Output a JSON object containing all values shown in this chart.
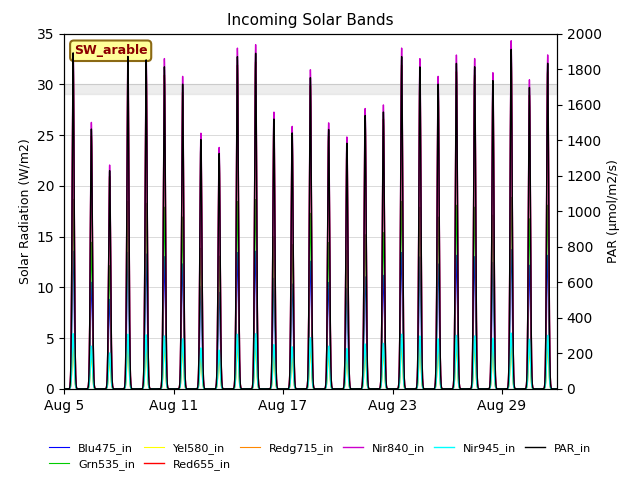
{
  "title": "Incoming Solar Bands",
  "ylabel_left": "Solar Radiation (W/m2)",
  "ylabel_right": "PAR (μmol/m2/s)",
  "annotation_text": "SW_arable",
  "annotation_color": "#8B0000",
  "annotation_bg": "#FFFF99",
  "annotation_border": "#8B6914",
  "xlim_days": [
    0,
    27
  ],
  "ylim_left": [
    0,
    35
  ],
  "ylim_right": [
    0,
    2000
  ],
  "xtick_positions": [
    0,
    6,
    12,
    18,
    24
  ],
  "xtick_labels": [
    "Aug 5",
    "Aug 11",
    "Aug 17",
    "Aug 23",
    "Aug 29"
  ],
  "yticks_left": [
    0,
    5,
    10,
    15,
    20,
    25,
    30,
    35
  ],
  "yticks_right": [
    0,
    200,
    400,
    600,
    800,
    1000,
    1200,
    1400,
    1600,
    1800,
    2000
  ],
  "hspan_ymin": 29.0,
  "hspan_ymax": 30.0,
  "lines": {
    "Blu475_in": {
      "color": "#0000FF",
      "lw": 0.8,
      "peak": 0.4
    },
    "Grn535_in": {
      "color": "#00CC00",
      "lw": 0.8,
      "peak": 0.55
    },
    "Yel580_in": {
      "color": "#FFFF00",
      "lw": 0.8,
      "peak": 0.12
    },
    "Red655_in": {
      "color": "#FF0000",
      "lw": 1.0,
      "peak": 0.95
    },
    "Redg715_in": {
      "color": "#FF8800",
      "lw": 0.8,
      "peak": 0.15
    },
    "Nir840_in": {
      "color": "#CC00CC",
      "lw": 1.0,
      "peak": 1.0
    },
    "Nir945_in": {
      "color": "#00FFFF",
      "lw": 1.0,
      "peak": 0.16
    },
    "PAR_in": {
      "color": "#000000",
      "lw": 1.0,
      "peak": 0.0
    }
  },
  "PAR_peak_umol": 1950,
  "max_solar_wm2": 35.0,
  "legend_order": [
    "Blu475_in",
    "Grn535_in",
    "Yel580_in",
    "Red655_in",
    "Redg715_in",
    "Nir840_in",
    "Nir945_in",
    "PAR_in"
  ],
  "figsize": [
    6.4,
    4.8
  ],
  "dpi": 100,
  "n_days": 27,
  "points_per_day": 144,
  "day_peaks": [
    0.97,
    0.75,
    0.63,
    0.96,
    0.95,
    0.93,
    0.88,
    0.72,
    0.68,
    0.96,
    0.97,
    0.78,
    0.74,
    0.9,
    0.75,
    0.71,
    0.79,
    0.8,
    0.96,
    0.93,
    0.88,
    0.94,
    0.93,
    0.89,
    0.98,
    0.87,
    0.94
  ]
}
